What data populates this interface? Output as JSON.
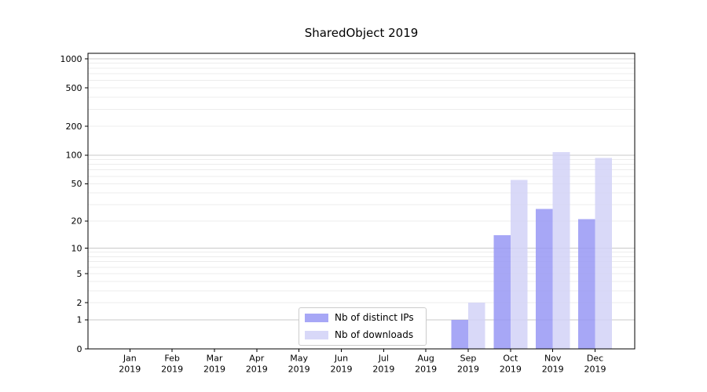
{
  "chart_data": {
    "type": "bar",
    "title": "SharedObject 2019",
    "x_months": [
      "Jan",
      "Feb",
      "Mar",
      "Apr",
      "May",
      "Jun",
      "Jul",
      "Aug",
      "Sep",
      "Oct",
      "Nov",
      "Dec"
    ],
    "x_year": "2019",
    "series": [
      {
        "name": "Nb of distinct IPs",
        "color": "#a7a7f6",
        "fill": "rgba(152,152,245,0.85)",
        "values": [
          0,
          0,
          0,
          0,
          0,
          0,
          0,
          0,
          1,
          14,
          27,
          21
        ]
      },
      {
        "name": "Nb of downloads",
        "color": "#d8d8f8",
        "fill": "rgba(210,210,247,0.85)",
        "values": [
          0,
          0,
          0,
          0,
          0,
          0,
          0,
          0,
          2,
          55,
          107,
          93
        ]
      }
    ],
    "y_scale": "log1p",
    "y_ticks": [
      0,
      1,
      2,
      5,
      10,
      20,
      50,
      100,
      200,
      500,
      1000
    ],
    "y_major_gridlines": [
      1,
      10,
      100,
      1000
    ],
    "y_axis_max": 1140,
    "grid": true,
    "legend_position": "lower center"
  },
  "colors": {
    "background": "#ffffff",
    "axis": "#000000",
    "grid_major": "#c9c9c9",
    "grid_minor": "#ececec",
    "tick_text": "#000000",
    "legend_border": "#cccccc",
    "legend_bg": "#ffffff"
  }
}
